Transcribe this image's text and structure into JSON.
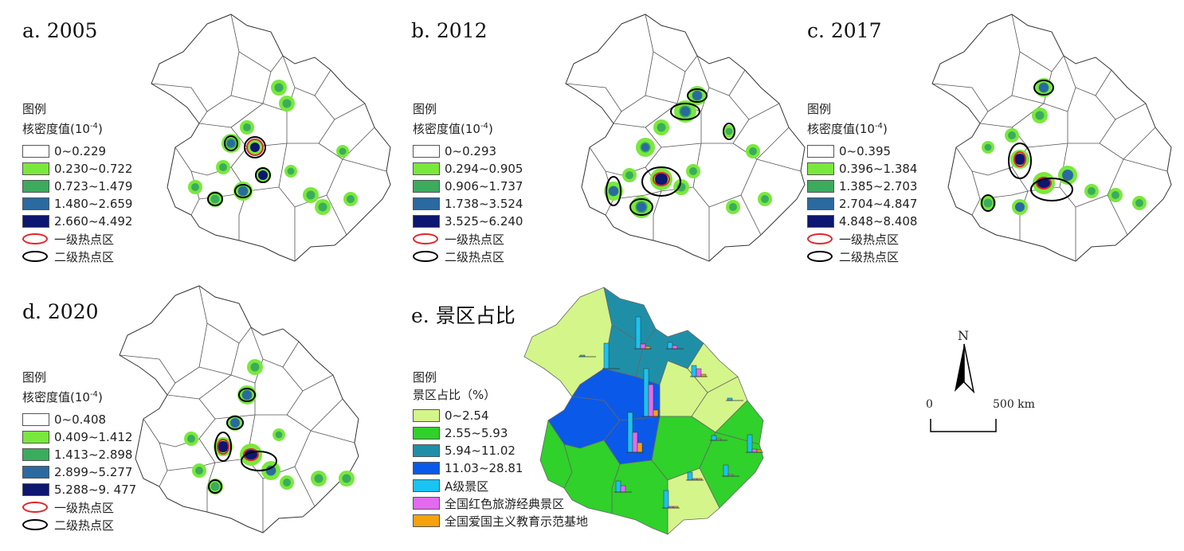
{
  "panels": [
    {
      "title": "a. 2005",
      "legend": {
        "heading": "图例",
        "subheading": "核密度值(10",
        "exp": "-4",
        "close": ")",
        "classes": [
          "0~0.229",
          "0.230~0.722",
          "0.723~1.479",
          "1.480~2.659",
          "2.660~4.492"
        ],
        "hot1": "一级热点区",
        "hot2": "二级热点区"
      }
    },
    {
      "title": "b. 2012",
      "legend": {
        "heading": "图例",
        "subheading": "核密度值(10",
        "exp": "-4",
        "close": ")",
        "classes": [
          "0~0.293",
          "0.294~0.905",
          "0.906~1.737",
          "1.738~3.524",
          "3.525~6.240"
        ],
        "hot1": "一级热点区",
        "hot2": "二级热点区"
      }
    },
    {
      "title": "c. 2017",
      "legend": {
        "heading": "图例",
        "subheading": "核密度值(10",
        "exp": "-4",
        "close": ")",
        "classes": [
          "0~0.395",
          "0.396~1.384",
          "1.385~2.703",
          "2.704~4.847",
          "4.848~8.408"
        ],
        "hot1": "一级热点区",
        "hot2": "二级热点区"
      }
    },
    {
      "title": "d. 2020",
      "legend": {
        "heading": "图例",
        "subheading": "核密度值(10",
        "exp": "-4",
        "close": ")",
        "classes": [
          "0~0.408",
          "0.409~1.412",
          "1.413~2.898",
          "2.899~5.277",
          "5.288~9. 477"
        ],
        "hot1": "一级热点区",
        "hot2": "二级热点区"
      }
    }
  ],
  "panel_e": {
    "title": "e. 景区占比",
    "legend": {
      "heading": "图例",
      "subheading": "景区占比（%）",
      "classes": [
        "0~2.54",
        "2.55~5.93",
        "5.94~11.02",
        "11.03~28.81"
      ],
      "series": [
        "A级景区",
        "全国红色旅游经典景区",
        "全国爱国主义教育示范基地"
      ]
    }
  },
  "north_label": "N",
  "scale": {
    "zero": "0",
    "end": "500 km"
  },
  "colors": {
    "density": [
      "#ffffff",
      "#79e83c",
      "#3aac5c",
      "#2a6aa0",
      "#0d1670"
    ],
    "hot1": "#e0262b",
    "hot2": "#000000",
    "share": [
      "#d4f58a",
      "#2fd12a",
      "#1f8fa8",
      "#0b59e8"
    ],
    "bars": [
      "#19c3f2",
      "#e36af0",
      "#f5a20e"
    ]
  }
}
